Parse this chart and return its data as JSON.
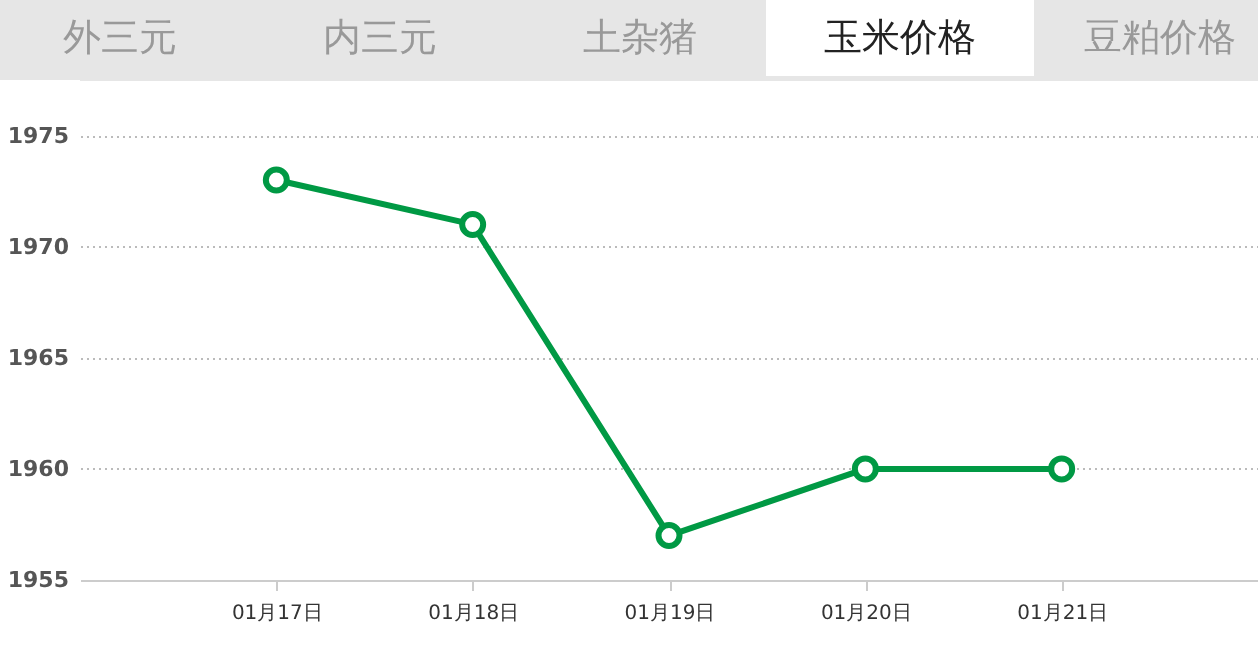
{
  "chart_data": {
    "type": "line",
    "title": "玉米价格",
    "annotations": [
      "外三元",
      "内三元",
      "土杂猪",
      "豆粕价格"
    ],
    "categories": [
      "01月17日",
      "01月18日",
      "01月19日",
      "01月20日",
      "01月21日"
    ],
    "series": [
      {
        "color": "#009944",
        "values": [
          1973,
          1971,
          1957,
          1960,
          1960
        ]
      }
    ],
    "ylim": [
      1955,
      1977.5
    ],
    "yticks": [
      1955,
      1960,
      1965,
      1970,
      1975
    ],
    "grid": "y",
    "marker": "circle",
    "line_style": "solid"
  }
}
